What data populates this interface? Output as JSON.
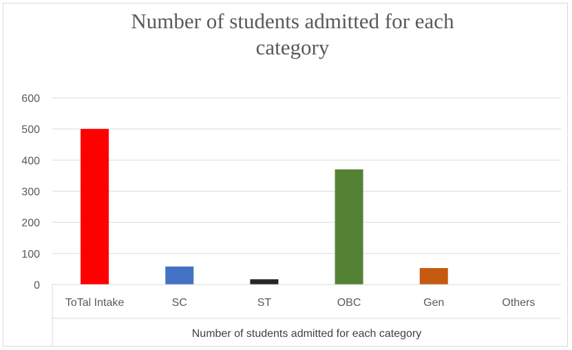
{
  "chart_data": {
    "type": "bar",
    "title": "Number of students admitted for each category",
    "categories": [
      "ToTal Intake",
      "SC",
      "ST",
      "OBC",
      "Gen",
      "Others"
    ],
    "values": [
      500,
      58,
      17,
      370,
      53,
      0
    ],
    "colors": [
      "#ff0000",
      "#4472c4",
      "#262626",
      "#548235",
      "#c55a11",
      "#a5a5a5"
    ],
    "xlabel": "Number of students admitted for each category",
    "ylabel": "",
    "ylim": [
      0,
      600
    ],
    "yticks": [
      "0",
      "100",
      "200",
      "300",
      "400",
      "500",
      "600"
    ],
    "grid": true,
    "legend": "none"
  }
}
